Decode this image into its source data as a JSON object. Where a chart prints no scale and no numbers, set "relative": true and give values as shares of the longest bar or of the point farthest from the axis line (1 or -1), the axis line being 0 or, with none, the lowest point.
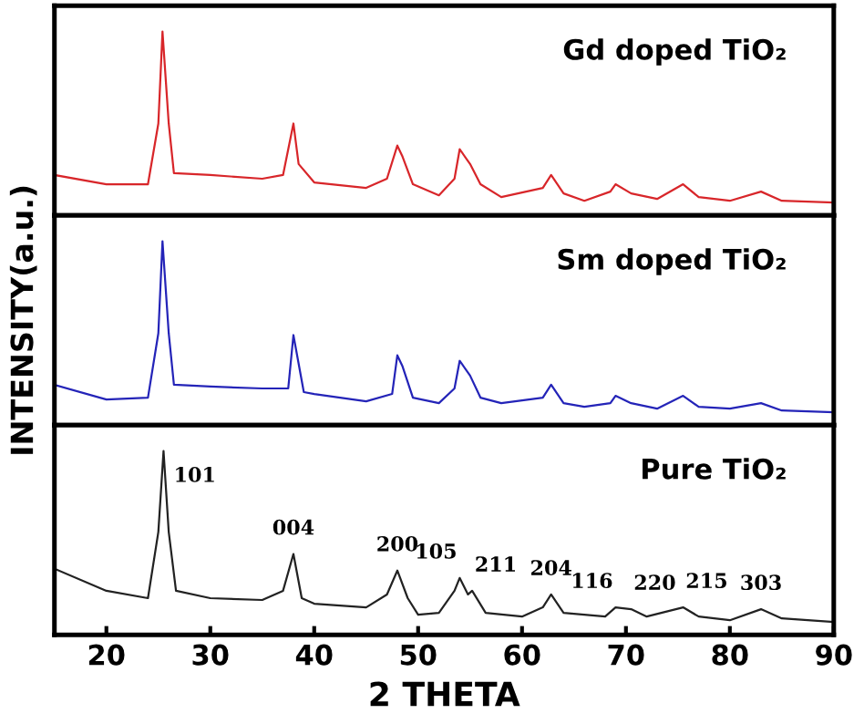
{
  "chart_data": [
    {
      "type": "line",
      "relative": true,
      "xlim": [
        15,
        90
      ],
      "tick_labels": false,
      "annotations": [
        "Gd doped TiO₂"
      ],
      "x": [
        15,
        20,
        24,
        25,
        25.4,
        26,
        26.5,
        30,
        35,
        37,
        38,
        38.5,
        40,
        45,
        47,
        48,
        48.5,
        49.5,
        52,
        53.5,
        54,
        55,
        56,
        58,
        62,
        62.8,
        64,
        66,
        68.5,
        69,
        70.5,
        73,
        75.5,
        77,
        80,
        83,
        85,
        90
      ],
      "series": [
        {
          "color": "#d8262a",
          "values": [
            0.22,
            0.17,
            0.17,
            0.5,
            1,
            0.5,
            0.23,
            0.22,
            0.2,
            0.22,
            0.5,
            0.28,
            0.18,
            0.15,
            0.2,
            0.38,
            0.32,
            0.17,
            0.11,
            0.2,
            0.36,
            0.28,
            0.17,
            0.1,
            0.15,
            0.22,
            0.12,
            0.08,
            0.13,
            0.17,
            0.12,
            0.09,
            0.17,
            0.1,
            0.08,
            0.13,
            0.08,
            0.07
          ]
        }
      ]
    },
    {
      "type": "line",
      "relative": true,
      "xlim": [
        15,
        90
      ],
      "tick_labels": false,
      "ylabel": "INTENSITY(a.u.)",
      "annotations": [
        "Sm doped TiO₂"
      ],
      "x": [
        15,
        20,
        24,
        25,
        25.4,
        26,
        26.5,
        30,
        35,
        37.5,
        38,
        39,
        40,
        45,
        47.5,
        48,
        48.5,
        49.5,
        52,
        53.5,
        54,
        55,
        56,
        58,
        62,
        62.8,
        64,
        66,
        68.5,
        69,
        70.5,
        73,
        75.5,
        77,
        80,
        83,
        85,
        90
      ],
      "series": [
        {
          "color": "#2424b8",
          "values": [
            0.22,
            0.14,
            0.15,
            0.5,
            1,
            0.5,
            0.22,
            0.21,
            0.2,
            0.2,
            0.49,
            0.18,
            0.17,
            0.13,
            0.17,
            0.38,
            0.32,
            0.15,
            0.12,
            0.2,
            0.35,
            0.27,
            0.15,
            0.12,
            0.15,
            0.22,
            0.12,
            0.1,
            0.12,
            0.16,
            0.12,
            0.09,
            0.16,
            0.1,
            0.09,
            0.12,
            0.08,
            0.07
          ]
        }
      ]
    },
    {
      "type": "line",
      "relative": true,
      "xlim": [
        15,
        90
      ],
      "xticks": [
        20,
        30,
        40,
        50,
        60,
        70,
        80,
        90
      ],
      "tick_labels": "x",
      "xlabel": "2 THETA",
      "annotations": [
        "Pure TiO₂",
        {
          "text": "101",
          "x": 25.5,
          "y": 1
        },
        {
          "text": "004",
          "x": 38,
          "y": 0.44
        },
        {
          "text": "200",
          "x": 48,
          "y": 0.35
        },
        {
          "text": "105",
          "x": 54,
          "y": 0.31
        },
        {
          "text": "211",
          "x": 55.2,
          "y": 0.24
        },
        {
          "text": "204",
          "x": 62.8,
          "y": 0.22
        },
        {
          "text": "116",
          "x": 69,
          "y": 0.15
        },
        {
          "text": "220",
          "x": 70.5,
          "y": 0.14
        },
        {
          "text": "215",
          "x": 75.5,
          "y": 0.15
        },
        {
          "text": "303",
          "x": 83,
          "y": 0.14
        }
      ],
      "x": [
        15,
        20,
        24,
        25,
        25.5,
        26,
        26.7,
        30,
        35,
        37,
        38,
        38.8,
        40,
        45,
        47,
        48,
        49,
        50,
        52,
        53.5,
        54,
        54.8,
        55.2,
        56.5,
        60,
        62,
        62.8,
        64,
        68,
        69,
        70.5,
        72,
        75.5,
        77,
        80,
        83,
        85,
        90
      ],
      "series": [
        {
          "color": "#222222",
          "values": [
            0.36,
            0.24,
            0.2,
            0.56,
            1,
            0.56,
            0.24,
            0.2,
            0.19,
            0.24,
            0.44,
            0.2,
            0.17,
            0.15,
            0.22,
            0.35,
            0.2,
            0.11,
            0.12,
            0.24,
            0.31,
            0.22,
            0.24,
            0.12,
            0.1,
            0.15,
            0.22,
            0.12,
            0.1,
            0.15,
            0.14,
            0.1,
            0.15,
            0.1,
            0.08,
            0.14,
            0.09,
            0.07
          ]
        }
      ]
    }
  ]
}
